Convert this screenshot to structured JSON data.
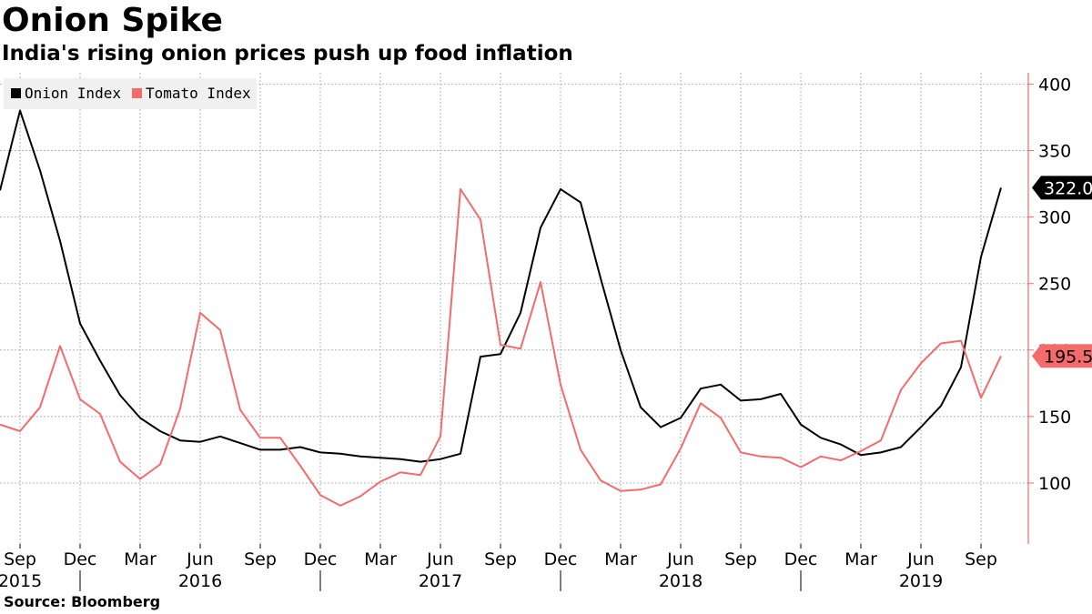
{
  "title": "Onion Spike",
  "subtitle": "India's rising onion prices push up food inflation",
  "source": "Source: Bloomberg",
  "colors": {
    "onion": "#000000",
    "tomato": "#f36b6b",
    "grid": "#b5b5b5",
    "axis": "#f36b6b"
  },
  "chart_data": {
    "type": "line",
    "grid": true,
    "legend_position": "top-left",
    "ylim": [
      65,
      410
    ],
    "y_ticks": [
      100,
      150,
      200,
      250,
      300,
      350,
      400
    ],
    "y_axis_side": "right",
    "x": [
      "2015-08",
      "2015-09",
      "2015-10",
      "2015-11",
      "2015-12",
      "2016-01",
      "2016-02",
      "2016-03",
      "2016-04",
      "2016-05",
      "2016-06",
      "2016-07",
      "2016-08",
      "2016-09",
      "2016-10",
      "2016-11",
      "2016-12",
      "2017-01",
      "2017-02",
      "2017-03",
      "2017-04",
      "2017-05",
      "2017-06",
      "2017-07",
      "2017-08",
      "2017-09",
      "2017-10",
      "2017-11",
      "2017-12",
      "2018-01",
      "2018-02",
      "2018-03",
      "2018-04",
      "2018-05",
      "2018-06",
      "2018-07",
      "2018-08",
      "2018-09",
      "2018-10",
      "2018-11",
      "2018-12",
      "2019-01",
      "2019-02",
      "2019-03",
      "2019-04",
      "2019-05",
      "2019-06",
      "2019-07",
      "2019-08",
      "2019-09",
      "2019-10"
    ],
    "x_tick_labels": [
      {
        "month": "2015-09",
        "label": "Sep"
      },
      {
        "month": "2015-12",
        "label": "Dec"
      },
      {
        "month": "2016-03",
        "label": "Mar"
      },
      {
        "month": "2016-06",
        "label": "Jun"
      },
      {
        "month": "2016-09",
        "label": "Sep"
      },
      {
        "month": "2016-12",
        "label": "Dec"
      },
      {
        "month": "2017-03",
        "label": "Mar"
      },
      {
        "month": "2017-06",
        "label": "Jun"
      },
      {
        "month": "2017-09",
        "label": "Sep"
      },
      {
        "month": "2017-12",
        "label": "Dec"
      },
      {
        "month": "2018-03",
        "label": "Mar"
      },
      {
        "month": "2018-06",
        "label": "Jun"
      },
      {
        "month": "2018-09",
        "label": "Sep"
      },
      {
        "month": "2018-12",
        "label": "Dec"
      },
      {
        "month": "2019-03",
        "label": "Mar"
      },
      {
        "month": "2019-06",
        "label": "Jun"
      },
      {
        "month": "2019-09",
        "label": "Sep"
      }
    ],
    "year_labels": [
      {
        "month": "2015-09",
        "label": "2015"
      },
      {
        "month": "2016-06",
        "label": "2016"
      },
      {
        "month": "2017-06",
        "label": "2017"
      },
      {
        "month": "2018-06",
        "label": "2018"
      },
      {
        "month": "2019-06",
        "label": "2019"
      }
    ],
    "year_dividers": [
      "2015-12",
      "2016-12",
      "2017-12",
      "2018-12"
    ],
    "series": [
      {
        "name": "Onion Index",
        "color": "#000000",
        "last_value_label": "322.0",
        "values": [
          320,
          380,
          335,
          282,
          220,
          192,
          166,
          149,
          139,
          132,
          131,
          135,
          130,
          125,
          125,
          127,
          123,
          122,
          120,
          119,
          118,
          116,
          118,
          122,
          195,
          197,
          228,
          292,
          321,
          311,
          254,
          200,
          157,
          142,
          149,
          171,
          174,
          162,
          163,
          167,
          144,
          134,
          129,
          121,
          123,
          127,
          142,
          158,
          187,
          270,
          322
        ]
      },
      {
        "name": "Tomato Index",
        "color": "#f36b6b",
        "last_value_label": "195.5",
        "values": [
          144,
          139,
          157,
          203,
          163,
          152,
          116,
          103,
          114,
          156,
          228,
          215,
          155,
          134,
          134,
          113,
          91,
          83,
          90,
          101,
          108,
          106,
          135,
          321,
          298,
          204,
          201,
          251,
          174,
          125,
          102,
          94,
          95,
          99,
          126,
          160,
          149,
          123,
          120,
          119,
          112,
          120,
          117,
          124,
          132,
          170,
          190,
          205,
          207,
          164,
          195.5
        ]
      }
    ]
  }
}
